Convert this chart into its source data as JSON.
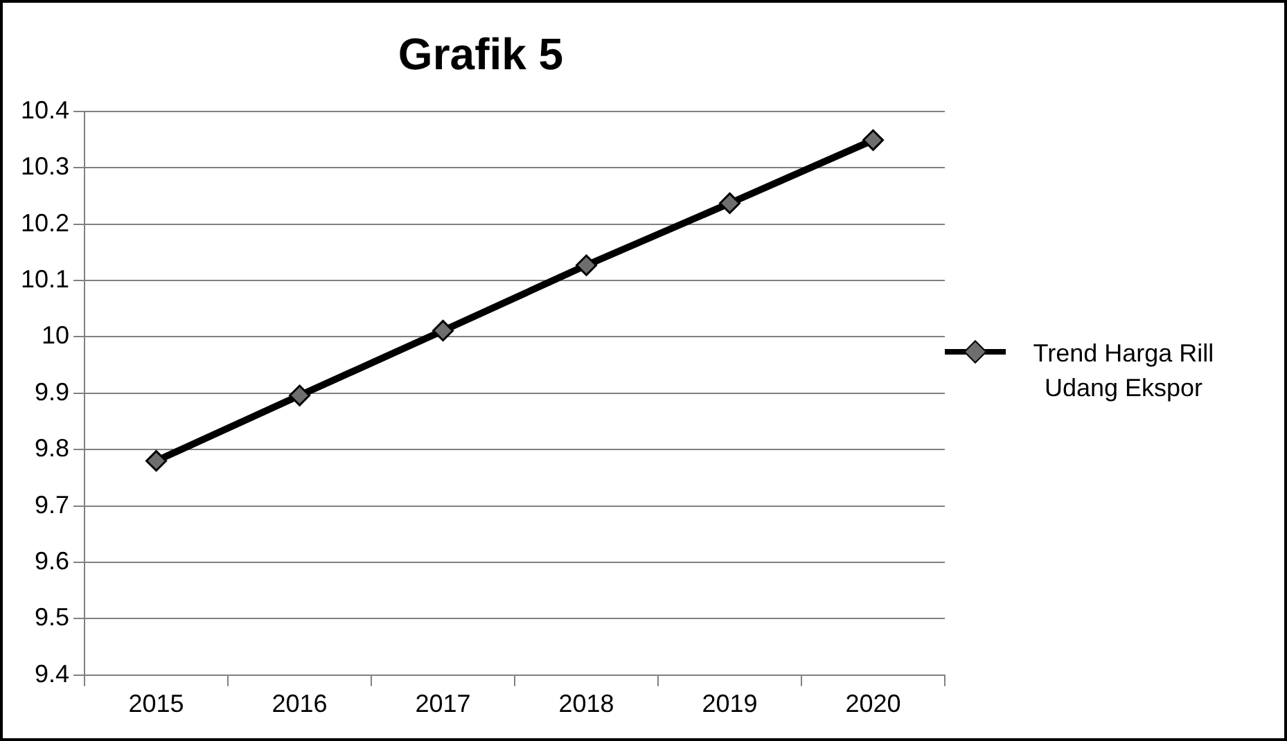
{
  "chart_data": {
    "type": "line",
    "title": "Grafik 5",
    "categories": [
      "2015",
      "2016",
      "2017",
      "2018",
      "2019",
      "2020"
    ],
    "series": [
      {
        "name": "Trend Harga Rill Udang Ekspor",
        "color": "#000000",
        "values": [
          9.78,
          9.896,
          10.011,
          10.127,
          10.237,
          10.349
        ]
      }
    ],
    "ylim": [
      9.4,
      10.4
    ],
    "yticks": [
      9.4,
      9.5,
      9.6,
      9.7,
      9.8,
      9.9,
      10,
      10.1,
      10.2,
      10.3,
      10.4
    ],
    "grid": "y",
    "legend": "right",
    "marker": "diamond",
    "line_style": "solid"
  }
}
